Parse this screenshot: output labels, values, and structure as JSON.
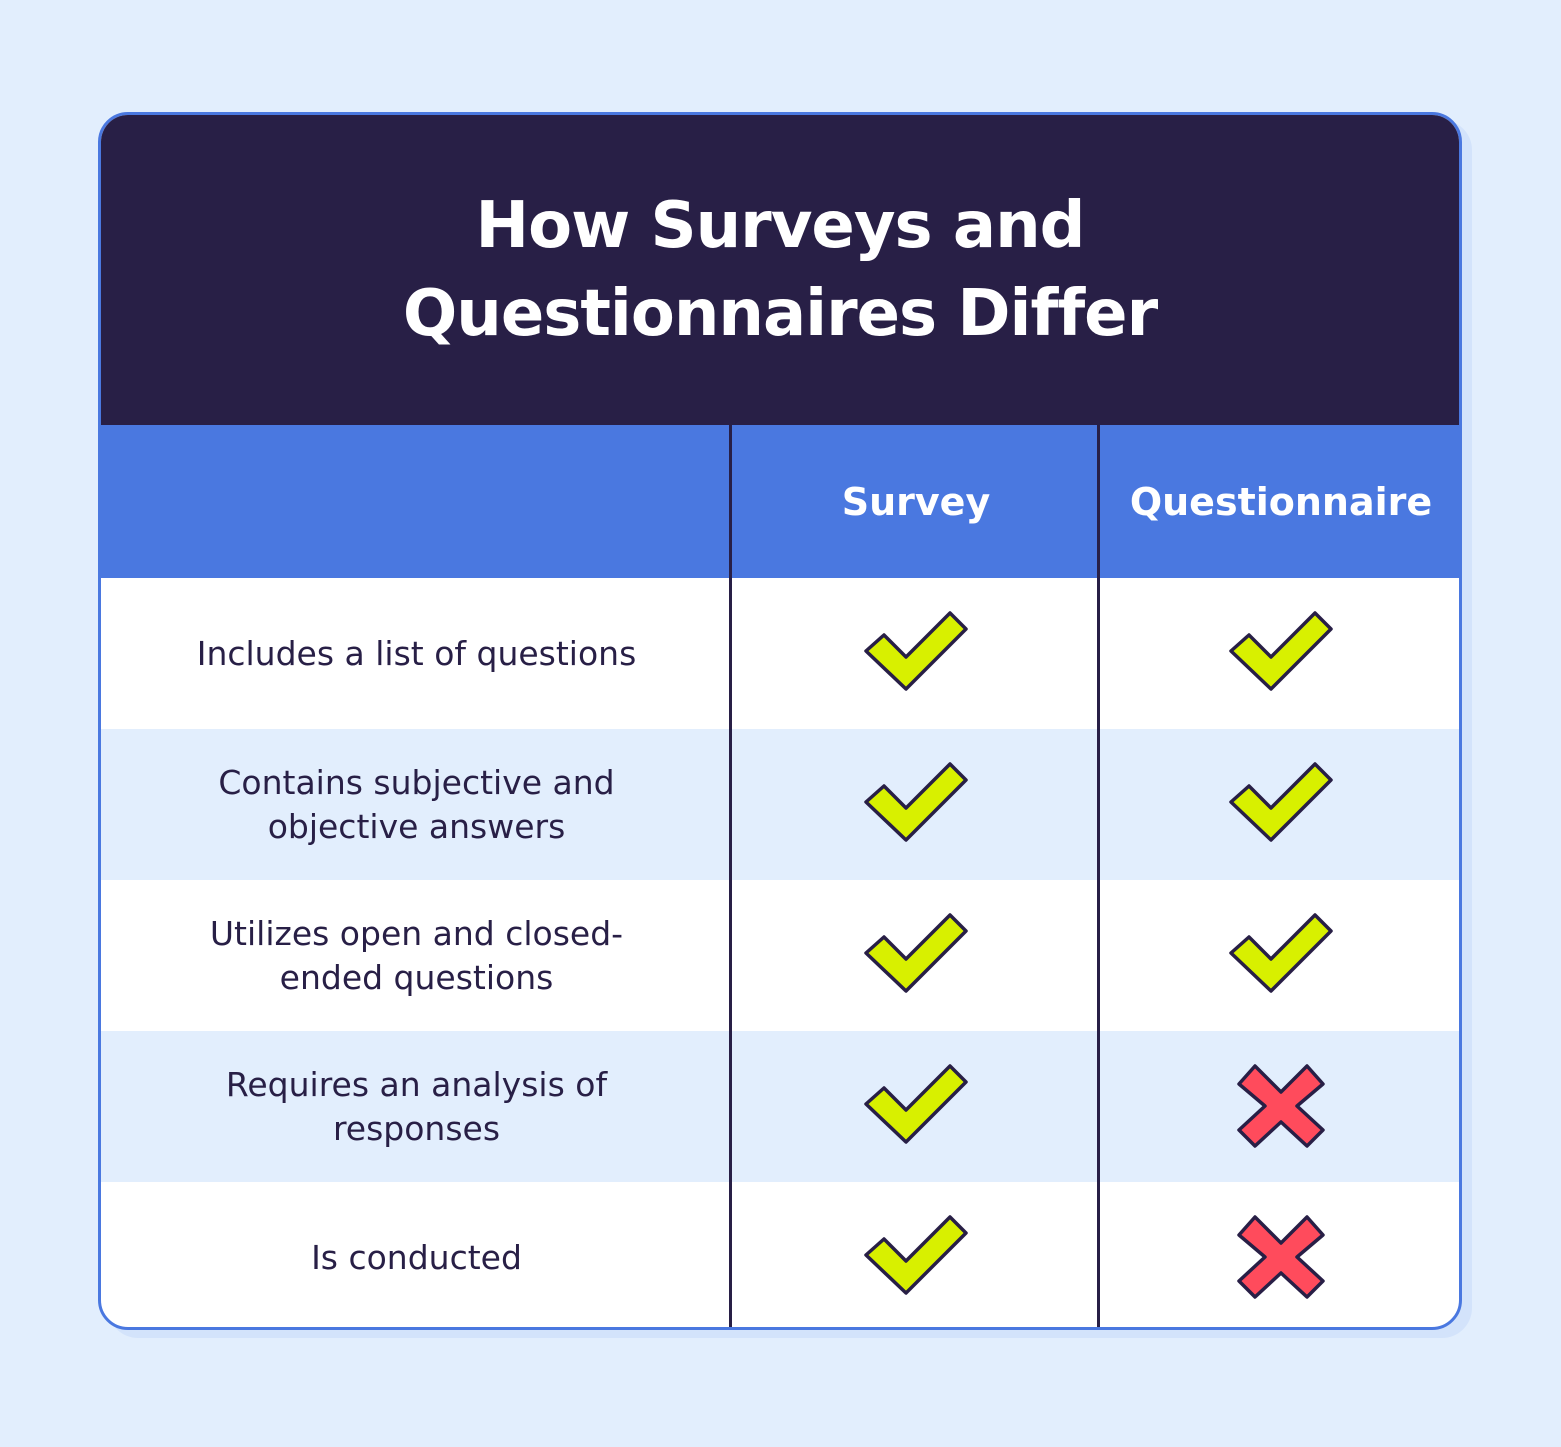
{
  "title": "How Surveys and Questionnaires Differ",
  "columns": {
    "criteria": "",
    "survey": "Survey",
    "questionnaire": "Questionnaire"
  },
  "rows": [
    {
      "label": "Includes a list of questions",
      "survey": "check",
      "questionnaire": "check"
    },
    {
      "label": "Contains subjective and objective answers",
      "survey": "check",
      "questionnaire": "check"
    },
    {
      "label": "Utilizes open and closed-ended questions",
      "survey": "check",
      "questionnaire": "check"
    },
    {
      "label": "Requires an analysis of responses",
      "survey": "check",
      "questionnaire": "cross"
    },
    {
      "label": "Is conducted",
      "survey": "check",
      "questionnaire": "cross"
    }
  ],
  "icons": {
    "check": "check-icon",
    "cross": "cross-icon"
  },
  "colors": {
    "background": "#e2eefd",
    "title_bar": "#281f46",
    "header_row": "#4a78e0",
    "check_fill": "#d8f000",
    "cross_fill": "#ff4b5c",
    "text": "#281f46"
  }
}
